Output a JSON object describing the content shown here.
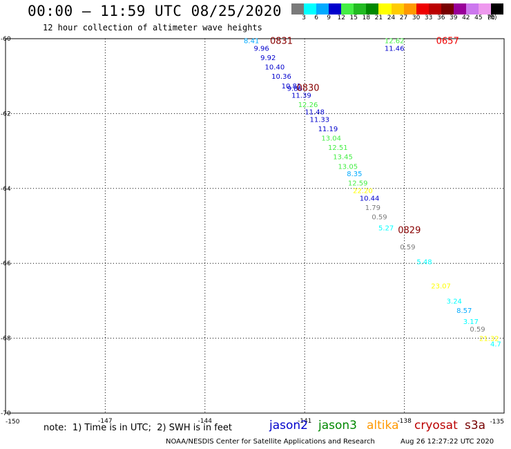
{
  "header": {
    "title": "00:00 – 11:59 UTC 08/25/2020",
    "subtitle": "12 hour collection of altimeter wave heights"
  },
  "scale": {
    "ticks": [
      "3",
      "6",
      "9",
      "12",
      "15",
      "18",
      "21",
      "24",
      "27",
      "30",
      "33",
      "36",
      "39",
      "42",
      "45",
      "70"
    ],
    "unit": "(ft)",
    "colors": [
      "#7a7a7a",
      "#00ffff",
      "#00aaff",
      "#0000cc",
      "#44ee44",
      "#22bb22",
      "#008800",
      "#ffff00",
      "#ffcc00",
      "#ff9900",
      "#ee0000",
      "#bb0000",
      "#770000",
      "#990099",
      "#cc77ee",
      "#ee99ee",
      "#000000"
    ]
  },
  "axes": {
    "lat_labels": [
      "-60",
      "-62",
      "-64",
      "-66",
      "-68",
      "-70"
    ],
    "lon_labels": [
      "-150",
      "-147",
      "-144",
      "-141",
      "-138",
      "-135"
    ]
  },
  "chart_data": {
    "type": "scatter",
    "xlabel": "",
    "ylabel": "",
    "xlim": [
      -150,
      -135
    ],
    "ylim": [
      -70,
      -60
    ],
    "observations": [
      {
        "lon": -142.6,
        "lat": -60.05,
        "value": "8.41",
        "color": "#00aaff"
      },
      {
        "lon": -142.3,
        "lat": -60.25,
        "value": "9.96",
        "color": "#0000cc"
      },
      {
        "lon": -142.1,
        "lat": -60.5,
        "value": "9.92",
        "color": "#0000cc"
      },
      {
        "lon": -141.9,
        "lat": -60.75,
        "value": "10.40",
        "color": "#0000cc"
      },
      {
        "lon": -141.7,
        "lat": -61.0,
        "value": "10.36",
        "color": "#0000cc"
      },
      {
        "lon": -141.4,
        "lat": -61.25,
        "value": "10.81",
        "color": "#0000cc"
      },
      {
        "lon": -141.3,
        "lat": -61.32,
        "value": "9.86",
        "color": "#0000cc"
      },
      {
        "lon": -141.1,
        "lat": -61.5,
        "value": "11.39",
        "color": "#0000cc"
      },
      {
        "lon": -140.9,
        "lat": -61.75,
        "value": "12.26",
        "color": "#44ee44"
      },
      {
        "lon": -140.7,
        "lat": -61.95,
        "value": "11.48",
        "color": "#0000cc"
      },
      {
        "lon": -140.55,
        "lat": -62.15,
        "value": "11.33",
        "color": "#0000cc"
      },
      {
        "lon": -140.3,
        "lat": -62.4,
        "value": "11.19",
        "color": "#0000cc"
      },
      {
        "lon": -140.2,
        "lat": -62.65,
        "value": "13.04",
        "color": "#44ee44"
      },
      {
        "lon": -140.0,
        "lat": -62.9,
        "value": "12.51",
        "color": "#44ee44"
      },
      {
        "lon": -139.85,
        "lat": -63.15,
        "value": "13.45",
        "color": "#44ee44"
      },
      {
        "lon": -139.7,
        "lat": -63.4,
        "value": "13.05",
        "color": "#44ee44"
      },
      {
        "lon": -139.5,
        "lat": -63.6,
        "value": "8.35",
        "color": "#00aaff"
      },
      {
        "lon": -139.4,
        "lat": -63.85,
        "value": "12.59",
        "color": "#44ee44"
      },
      {
        "lon": -139.25,
        "lat": -64.05,
        "value": "22.20",
        "color": "#ffff00"
      },
      {
        "lon": -139.05,
        "lat": -64.25,
        "value": "10.44",
        "color": "#0000cc"
      },
      {
        "lon": -138.95,
        "lat": -64.5,
        "value": "1.79",
        "color": "#7a7a7a"
      },
      {
        "lon": -138.75,
        "lat": -64.75,
        "value": "0.59",
        "color": "#7a7a7a"
      },
      {
        "lon": -138.55,
        "lat": -65.05,
        "value": "5.27",
        "color": "#00ffff"
      },
      {
        "lon": -137.9,
        "lat": -65.55,
        "value": "0.59",
        "color": "#7a7a7a"
      },
      {
        "lon": -137.4,
        "lat": -65.95,
        "value": "5.48",
        "color": "#00ffff"
      },
      {
        "lon": -136.9,
        "lat": -66.6,
        "value": "23.07",
        "color": "#ffff00"
      },
      {
        "lon": -136.5,
        "lat": -67.0,
        "value": "3.24",
        "color": "#00ffff"
      },
      {
        "lon": -136.2,
        "lat": -67.25,
        "value": "8.57",
        "color": "#00aaff"
      },
      {
        "lon": -136.0,
        "lat": -67.55,
        "value": "3.17",
        "color": "#00ffff"
      },
      {
        "lon": -135.8,
        "lat": -67.75,
        "value": "0.59",
        "color": "#7a7a7a"
      },
      {
        "lon": -135.45,
        "lat": -68.0,
        "value": "21.32",
        "color": "#ffff00"
      },
      {
        "lon": -135.25,
        "lat": -68.15,
        "value": "4.7",
        "color": "#00ffff"
      },
      {
        "lon": -138.3,
        "lat": -60.05,
        "value": "12.62",
        "color": "#44ee44"
      },
      {
        "lon": -138.3,
        "lat": -60.25,
        "value": "11.46",
        "color": "#0000cc"
      }
    ],
    "pass_times": [
      {
        "lon": -141.7,
        "lat": -60.05,
        "value": "0831",
        "color": "#880000"
      },
      {
        "lon": -140.9,
        "lat": -61.3,
        "value": "0830",
        "color": "#880000"
      },
      {
        "lon": -137.85,
        "lat": -65.1,
        "value": "0829",
        "color": "#880000"
      },
      {
        "lon": -136.7,
        "lat": -60.05,
        "value": "0657",
        "color": "#ee0000"
      }
    ]
  },
  "footer": {
    "note": "note:  1) Time is in UTC;  2) SWH is in feet",
    "missions": [
      {
        "name": "jason2",
        "color": "#0000cc"
      },
      {
        "name": "jason3",
        "color": "#008800"
      },
      {
        "name": "altika",
        "color": "#ff9900"
      },
      {
        "name": "cryosat",
        "color": "#bb0000"
      },
      {
        "name": "s3a",
        "color": "#770000"
      }
    ],
    "credit": "NOAA/NESDIS Center for Satellite Applications and Research",
    "generated": "Aug 26 12:27:22 UTC 2020"
  }
}
